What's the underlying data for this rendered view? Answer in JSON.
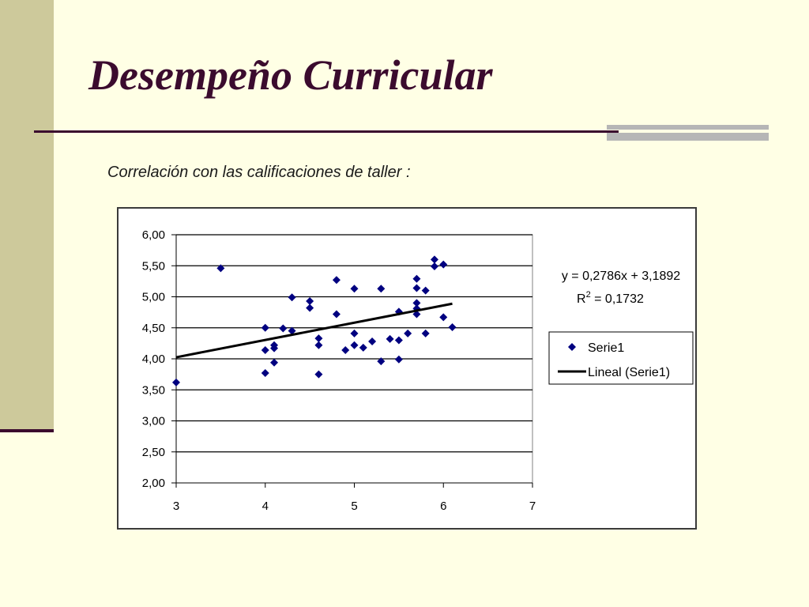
{
  "slide": {
    "title": "Desempeño Curricular",
    "subtitle": "Correlación con las calificaciones de taller :"
  },
  "colors": {
    "accent": "#3b0b2e",
    "marker": "#000080",
    "trendline": "#000000",
    "sidebar": "#cdc99b",
    "background": "#ffffe5"
  },
  "chart_data": {
    "type": "scatter",
    "title": "",
    "xlabel": "",
    "ylabel": "",
    "xlim": [
      3,
      7
    ],
    "ylim": [
      2,
      6
    ],
    "x_ticks": [
      "3",
      "4",
      "5",
      "6",
      "7"
    ],
    "y_ticks": [
      "2,00",
      "2,50",
      "3,00",
      "3,50",
      "4,00",
      "4,50",
      "5,00",
      "5,50",
      "6,00"
    ],
    "grid": "horizontal",
    "legend_position": "right",
    "series": [
      {
        "name": "Serie1",
        "marker": "diamond",
        "points": [
          [
            3.0,
            3.62
          ],
          [
            3.5,
            5.46
          ],
          [
            4.0,
            4.5
          ],
          [
            4.0,
            4.14
          ],
          [
            4.0,
            3.77
          ],
          [
            4.1,
            4.22
          ],
          [
            4.1,
            4.17
          ],
          [
            4.1,
            3.94
          ],
          [
            4.2,
            4.49
          ],
          [
            4.3,
            4.99
          ],
          [
            4.3,
            4.45
          ],
          [
            4.5,
            4.93
          ],
          [
            4.5,
            4.82
          ],
          [
            4.6,
            4.33
          ],
          [
            4.6,
            4.22
          ],
          [
            4.6,
            3.75
          ],
          [
            4.8,
            5.27
          ],
          [
            4.8,
            4.72
          ],
          [
            4.9,
            4.14
          ],
          [
            5.0,
            5.13
          ],
          [
            5.0,
            4.41
          ],
          [
            5.0,
            4.22
          ],
          [
            5.1,
            4.18
          ],
          [
            5.2,
            4.28
          ],
          [
            5.3,
            5.13
          ],
          [
            5.3,
            3.96
          ],
          [
            5.4,
            4.32
          ],
          [
            5.5,
            4.76
          ],
          [
            5.5,
            4.3
          ],
          [
            5.5,
            3.99
          ],
          [
            5.6,
            4.41
          ],
          [
            5.7,
            5.29
          ],
          [
            5.7,
            5.14
          ],
          [
            5.7,
            4.9
          ],
          [
            5.7,
            4.81
          ],
          [
            5.7,
            4.72
          ],
          [
            5.8,
            5.1
          ],
          [
            5.8,
            4.41
          ],
          [
            5.9,
            5.6
          ],
          [
            5.9,
            5.49
          ],
          [
            6.0,
            5.52
          ],
          [
            6.0,
            4.67
          ],
          [
            6.1,
            4.51
          ]
        ]
      }
    ],
    "trendline": {
      "name": "Lineal (Serie1)",
      "slope": 0.2786,
      "intercept": 3.1892,
      "x_range": [
        3,
        6.1
      ],
      "equation_label": "y = 0,2786x + 3,1892",
      "r2_prefix": "R",
      "r2_exponent": "2",
      "r2_value": " = 0,1732"
    }
  }
}
